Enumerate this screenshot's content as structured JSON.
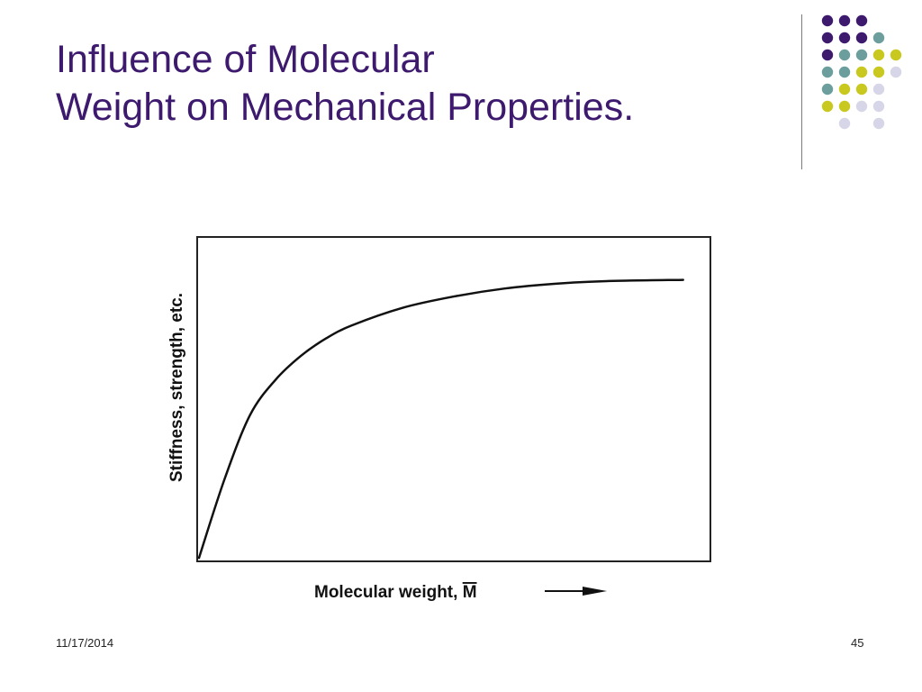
{
  "slide": {
    "title_line1": "Influence of Molecular",
    "title_line2": "Weight on Mechanical Properties.",
    "footer_date": "11/17/2014",
    "footer_page": "45"
  },
  "decoration": {
    "dot_colors": {
      "purple": "#3d1a6e",
      "teal": "#6b9e9c",
      "yellow": "#c8c81e",
      "lavender": "#d6d6e8"
    },
    "dot_rows": [
      [
        "purple",
        "purple",
        "purple",
        null,
        null
      ],
      [
        "purple",
        "purple",
        "purple",
        "teal",
        null
      ],
      [
        "purple",
        "teal",
        "teal",
        "yellow",
        "yellow"
      ],
      [
        "teal",
        "teal",
        "yellow",
        "yellow",
        "lavender"
      ],
      [
        "teal",
        "yellow",
        "yellow",
        "lavender",
        null
      ],
      [
        "yellow",
        "yellow",
        "lavender",
        "lavender",
        null
      ],
      [
        null,
        "lavender",
        null,
        "lavender",
        null
      ]
    ]
  },
  "chart_data": {
    "type": "line",
    "title": "",
    "xlabel": "Molecular weight, M",
    "xlabel_overbar_char": "M",
    "ylabel": "Stiffness, strength, etc.",
    "x_ticks": false,
    "y_ticks": false,
    "grid": false,
    "xlim": [
      0,
      10
    ],
    "ylim": [
      0,
      10
    ],
    "series": [
      {
        "values": [
          [
            0,
            0.05
          ],
          [
            0.5,
            2.5
          ],
          [
            1,
            4.5
          ],
          [
            1.5,
            5.6
          ],
          [
            2,
            6.35
          ],
          [
            2.5,
            6.9
          ],
          [
            3,
            7.3
          ],
          [
            4,
            7.85
          ],
          [
            5,
            8.2
          ],
          [
            6,
            8.45
          ],
          [
            7,
            8.6
          ],
          [
            8,
            8.68
          ],
          [
            9.5,
            8.72
          ]
        ]
      }
    ]
  }
}
